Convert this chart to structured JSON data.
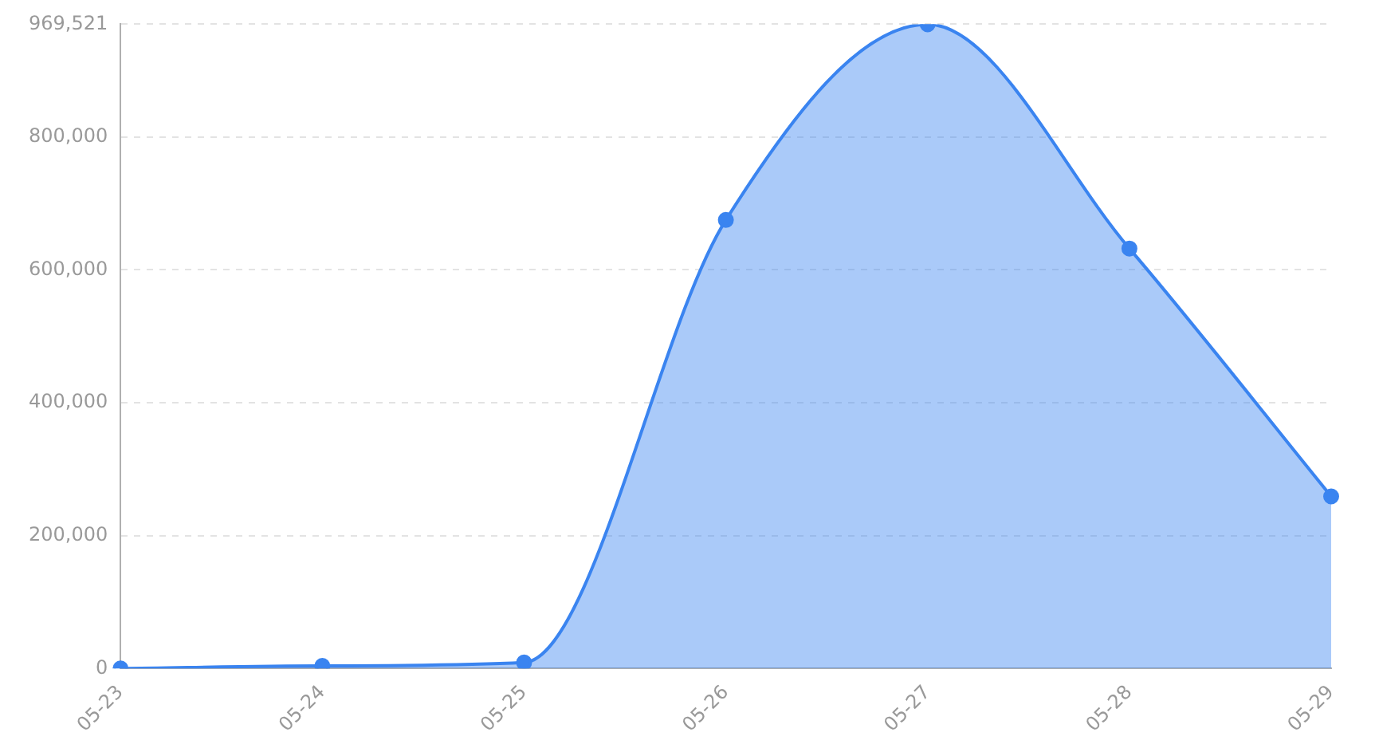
{
  "chart_data": {
    "type": "area",
    "categories": [
      "05-23",
      "05-24",
      "05-25",
      "05-26",
      "05-27",
      "05-28",
      "05-29"
    ],
    "series": [
      {
        "color": "#3a84f0",
        "values": [
          0,
          4000,
          9000,
          675000,
          969521,
          632000,
          259000
        ]
      }
    ],
    "ylim": [
      0,
      969521
    ],
    "yticks": [
      0,
      {
        "value": 200000,
        "label": "200,000"
      },
      {
        "value": 400000,
        "label": "400,000"
      },
      {
        "value": 600000,
        "label": "600,000"
      },
      {
        "value": 800000,
        "label": "800,000"
      },
      {
        "value": 969521,
        "label": "969,521"
      }
    ],
    "grid": "y",
    "marker": "circle",
    "legend": false
  }
}
